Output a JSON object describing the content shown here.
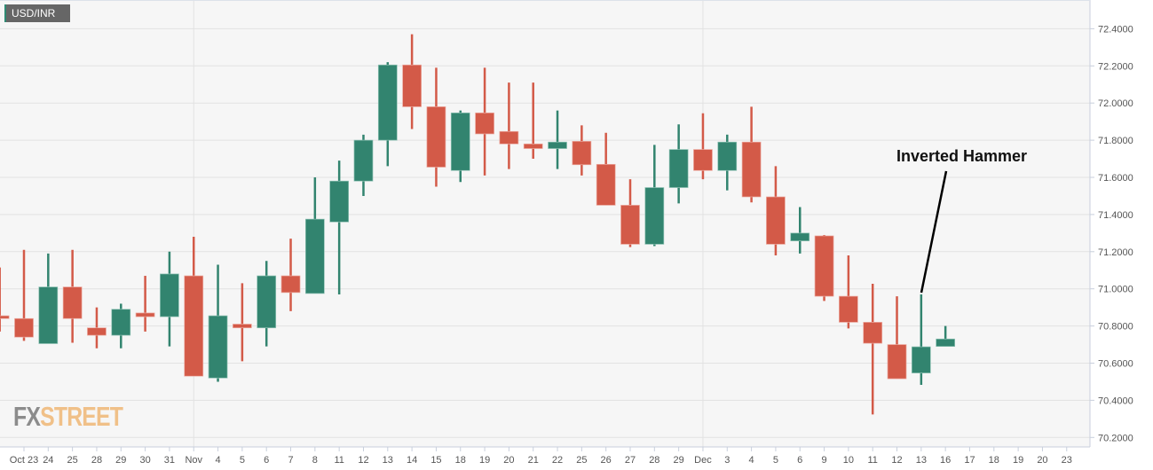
{
  "pair_label": "USD/INR",
  "logo": {
    "part1": "FX",
    "part2": "STREET"
  },
  "annotation": {
    "text": "Inverted Hammer",
    "points_to": "Dec 13"
  },
  "colors": {
    "up": "#32846f",
    "down": "#d35a48",
    "plot_bg": "#f6f6f6",
    "grid": "#e2e2e2"
  },
  "chart_data": {
    "type": "candlestick",
    "title": "",
    "ylim": [
      70.2,
      72.4
    ],
    "y_ticks": [
      "70.2000",
      "70.4000",
      "70.6000",
      "70.8000",
      "71.0000",
      "71.2000",
      "71.4000",
      "71.6000",
      "71.8000",
      "72.0000",
      "72.2000",
      "72.4000"
    ],
    "x_ticks": [
      "Oct 23",
      "24",
      "25",
      "28",
      "29",
      "30",
      "31",
      "Nov",
      "4",
      "5",
      "6",
      "7",
      "8",
      "11",
      "12",
      "13",
      "14",
      "15",
      "18",
      "19",
      "20",
      "21",
      "22",
      "25",
      "26",
      "27",
      "28",
      "29",
      "Dec",
      "3",
      "4",
      "5",
      "6",
      "9",
      "10",
      "11",
      "12",
      "13",
      "16",
      "17",
      "18",
      "19",
      "20",
      "23"
    ],
    "grid": true,
    "candles": [
      {
        "date": "Oct 22",
        "o": 70.855,
        "h": 71.115,
        "l": 70.77,
        "c": 70.84
      },
      {
        "date": "Oct 23",
        "o": 70.84,
        "h": 71.21,
        "l": 70.72,
        "c": 70.74
      },
      {
        "date": "Oct 24",
        "o": 70.705,
        "h": 71.19,
        "l": 70.705,
        "c": 71.01
      },
      {
        "date": "Oct 25",
        "o": 71.01,
        "h": 71.21,
        "l": 70.71,
        "c": 70.84
      },
      {
        "date": "Oct 28",
        "o": 70.79,
        "h": 70.9,
        "l": 70.68,
        "c": 70.75
      },
      {
        "date": "Oct 29",
        "o": 70.75,
        "h": 70.92,
        "l": 70.68,
        "c": 70.89
      },
      {
        "date": "Oct 30",
        "o": 70.87,
        "h": 71.07,
        "l": 70.77,
        "c": 70.85
      },
      {
        "date": "Oct 31",
        "o": 70.85,
        "h": 71.2,
        "l": 70.69,
        "c": 71.08
      },
      {
        "date": "Nov 1",
        "o": 71.07,
        "h": 71.28,
        "l": 70.53,
        "c": 70.53
      },
      {
        "date": "Nov 4",
        "o": 70.52,
        "h": 71.13,
        "l": 70.5,
        "c": 70.855
      },
      {
        "date": "Nov 5",
        "o": 70.81,
        "h": 71.03,
        "l": 70.61,
        "c": 70.79
      },
      {
        "date": "Nov 6",
        "o": 70.79,
        "h": 71.15,
        "l": 70.69,
        "c": 71.07
      },
      {
        "date": "Nov 7",
        "o": 71.07,
        "h": 71.27,
        "l": 70.88,
        "c": 70.98
      },
      {
        "date": "Nov 8",
        "o": 70.975,
        "h": 71.6,
        "l": 70.975,
        "c": 71.375
      },
      {
        "date": "Nov 11",
        "o": 71.36,
        "h": 71.69,
        "l": 70.97,
        "c": 71.58
      },
      {
        "date": "Nov 12",
        "o": 71.58,
        "h": 71.83,
        "l": 71.5,
        "c": 71.8
      },
      {
        "date": "Nov 13",
        "o": 71.8,
        "h": 72.22,
        "l": 71.66,
        "c": 72.205
      },
      {
        "date": "Nov 14",
        "o": 72.205,
        "h": 72.37,
        "l": 71.86,
        "c": 71.98
      },
      {
        "date": "Nov 15",
        "o": 71.98,
        "h": 72.19,
        "l": 71.55,
        "c": 71.655
      },
      {
        "date": "Nov 18",
        "o": 71.637,
        "h": 71.96,
        "l": 71.575,
        "c": 71.947
      },
      {
        "date": "Nov 19",
        "o": 71.947,
        "h": 72.19,
        "l": 71.61,
        "c": 71.834
      },
      {
        "date": "Nov 20",
        "o": 71.847,
        "h": 72.11,
        "l": 71.645,
        "c": 71.78
      },
      {
        "date": "Nov 21",
        "o": 71.78,
        "h": 72.11,
        "l": 71.7,
        "c": 71.755
      },
      {
        "date": "Nov 22",
        "o": 71.755,
        "h": 71.96,
        "l": 71.645,
        "c": 71.79
      },
      {
        "date": "Nov 25",
        "o": 71.794,
        "h": 71.88,
        "l": 71.61,
        "c": 71.668
      },
      {
        "date": "Nov 26",
        "o": 71.67,
        "h": 71.84,
        "l": 71.45,
        "c": 71.45
      },
      {
        "date": "Nov 27",
        "o": 71.45,
        "h": 71.59,
        "l": 71.225,
        "c": 71.24
      },
      {
        "date": "Nov 28",
        "o": 71.24,
        "h": 71.775,
        "l": 71.23,
        "c": 71.545
      },
      {
        "date": "Nov 29",
        "o": 71.545,
        "h": 71.885,
        "l": 71.46,
        "c": 71.75
      },
      {
        "date": "Dec 2",
        "o": 71.75,
        "h": 71.945,
        "l": 71.59,
        "c": 71.637
      },
      {
        "date": "Dec 3",
        "o": 71.637,
        "h": 71.83,
        "l": 71.53,
        "c": 71.79
      },
      {
        "date": "Dec 4",
        "o": 71.79,
        "h": 71.98,
        "l": 71.465,
        "c": 71.495
      },
      {
        "date": "Dec 5",
        "o": 71.495,
        "h": 71.66,
        "l": 71.18,
        "c": 71.24
      },
      {
        "date": "Dec 6",
        "o": 71.258,
        "h": 71.44,
        "l": 71.19,
        "c": 71.3
      },
      {
        "date": "Dec 9",
        "o": 71.285,
        "h": 71.29,
        "l": 70.935,
        "c": 70.96
      },
      {
        "date": "Dec 10",
        "o": 70.96,
        "h": 71.18,
        "l": 70.787,
        "c": 70.82
      },
      {
        "date": "Dec 11",
        "o": 70.82,
        "h": 71.027,
        "l": 70.324,
        "c": 70.707
      },
      {
        "date": "Dec 12",
        "o": 70.7,
        "h": 70.96,
        "l": 70.516,
        "c": 70.516
      },
      {
        "date": "Dec 13",
        "o": 70.547,
        "h": 70.97,
        "l": 70.483,
        "c": 70.688
      },
      {
        "date": "Dec 16",
        "o": 70.69,
        "h": 70.8,
        "l": 70.69,
        "c": 70.73
      }
    ]
  }
}
